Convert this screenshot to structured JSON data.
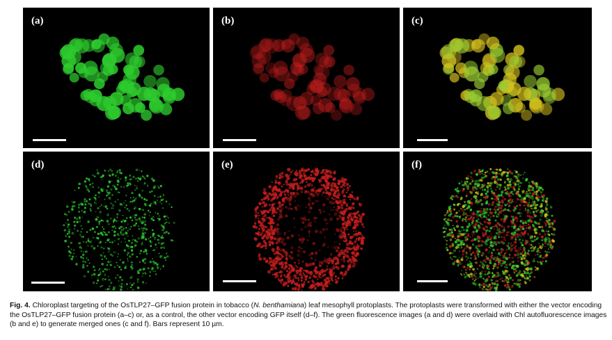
{
  "panels": [
    {
      "label": "(a)",
      "channel": "green"
    },
    {
      "label": "(b)",
      "channel": "red"
    },
    {
      "label": "(c)",
      "channel": "merged"
    },
    {
      "label": "(d)",
      "channel": "green-diffuse"
    },
    {
      "label": "(e)",
      "channel": "red-diffuse"
    },
    {
      "label": "(f)",
      "channel": "merged-diffuse"
    }
  ],
  "caption": {
    "fig_label": "Fig. 4.",
    "text_before": " Chloroplast targeting of the OsTLP27–GFP fusion protein in tobacco (",
    "species": "N. benthamiana",
    "text_after": ") leaf mesophyll protoplasts. The protoplasts were transformed with either the vector encoding the OsTLP27–GFP fusion protein (a–c) or, as a control, the other vector encoding GFP itself (d–f). The green fluorescence images (a and d) were overlaid with Chl autofluorescence images (b and e) to generate merged ones (c and f). Bars represent 10 µm."
  },
  "colors": {
    "green": "#2ecc2e",
    "red": "#c81e1e",
    "yellow": "#d6c21e",
    "background": "#000000"
  }
}
